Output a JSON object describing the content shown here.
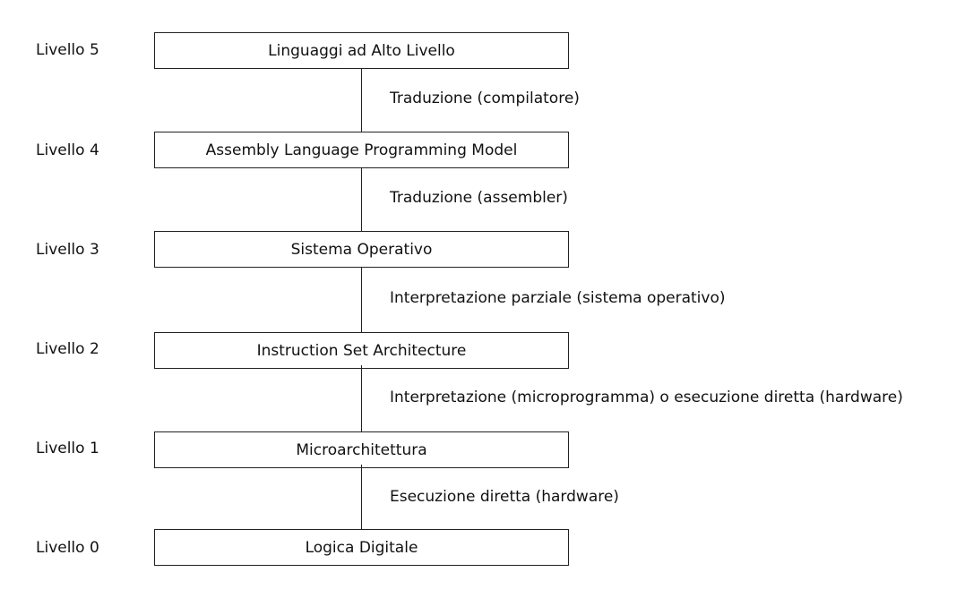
{
  "levels": [
    {
      "label": "Livello 5",
      "name": "Linguaggi ad Alto Livello"
    },
    {
      "label": "Livello 4",
      "name": "Assembly Language Programming Model"
    },
    {
      "label": "Livello 3",
      "name": "Sistema Operativo"
    },
    {
      "label": "Livello 2",
      "name": "Instruction Set Architecture"
    },
    {
      "label": "Livello 1",
      "name": "Microarchitettura"
    },
    {
      "label": "Livello 0",
      "name": "Logica Digitale"
    }
  ],
  "transitions": [
    "Traduzione (compilatore)",
    "Traduzione (assembler)",
    "Interpretazione parziale (sistema operativo)",
    "Interpretazione (microprogramma) o esecuzione diretta (hardware)",
    "Esecuzione diretta (hardware)"
  ]
}
